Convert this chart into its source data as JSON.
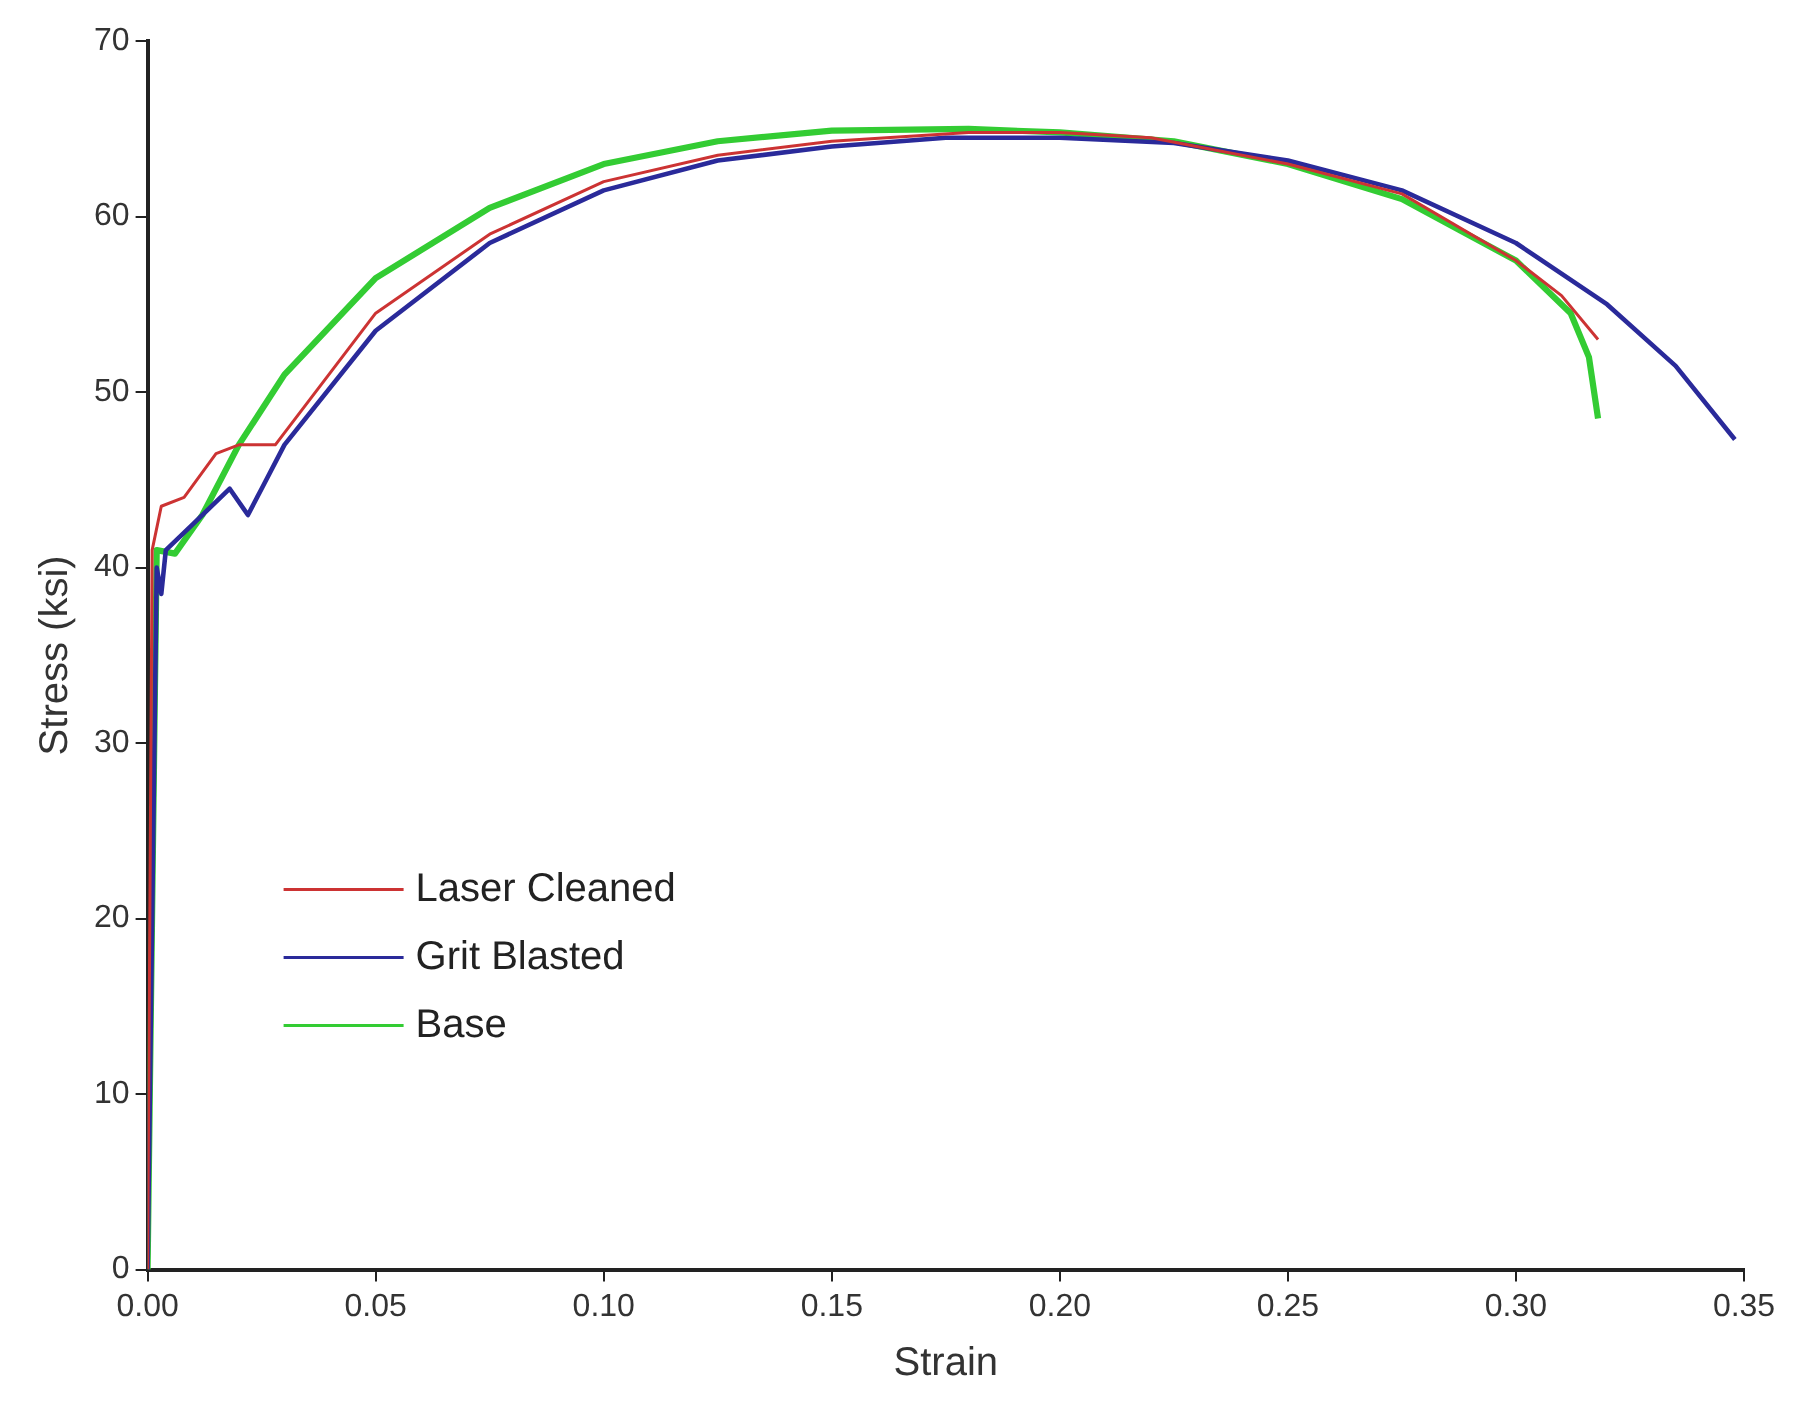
{
  "chart_data": {
    "type": "line",
    "xlabel": "Strain",
    "ylabel": "Stress (ksi)",
    "xlim": [
      0,
      0.35
    ],
    "ylim": [
      0,
      70
    ],
    "xticks": [
      {
        "value": 0,
        "label": "0.00"
      },
      {
        "value": 0.05,
        "label": "0.05"
      },
      {
        "value": 0.1,
        "label": "0.10"
      },
      {
        "value": 0.15,
        "label": "0.15"
      },
      {
        "value": 0.2,
        "label": "0.20"
      },
      {
        "value": 0.25,
        "label": "0.25"
      },
      {
        "value": 0.3,
        "label": "0.30"
      },
      {
        "value": 0.35,
        "label": "0.35"
      }
    ],
    "yticks": [
      0,
      10,
      20,
      30,
      40,
      50,
      60,
      70
    ],
    "grid": false,
    "legend": "bottom left",
    "marker": "none",
    "line_style": "solid",
    "series": [
      {
        "name": "Laser Cleaned",
        "color": "#cc3333",
        "x": [
          0,
          0.001,
          0.003,
          0.008,
          0.015,
          0.02,
          0.028,
          0.05,
          0.075,
          0.1,
          0.125,
          0.15,
          0.18,
          0.2,
          0.22,
          0.25,
          0.275,
          0.3,
          0.31,
          0.318
        ],
        "values": [
          0,
          41,
          43.5,
          44,
          46.5,
          47,
          47,
          54.5,
          59,
          62,
          63.5,
          64.3,
          64.8,
          64.8,
          64.5,
          63,
          61.3,
          57.5,
          55.5,
          53
        ]
      },
      {
        "name": "Grit Blasted",
        "color": "#2a2a9a",
        "x": [
          0,
          0.002,
          0.003,
          0.004,
          0.01,
          0.018,
          0.022,
          0.025,
          0.03,
          0.05,
          0.075,
          0.1,
          0.125,
          0.15,
          0.175,
          0.2,
          0.225,
          0.25,
          0.275,
          0.3,
          0.32,
          0.335,
          0.348
        ],
        "values": [
          0,
          40,
          38.5,
          41,
          42.5,
          44.5,
          43,
          44.5,
          47,
          53.5,
          58.5,
          61.5,
          63.2,
          64,
          64.5,
          64.5,
          64.2,
          63.2,
          61.5,
          58.5,
          55,
          51.5,
          47.3
        ]
      },
      {
        "name": "Base",
        "color": "#33cc33",
        "x": [
          0,
          0.002,
          0.006,
          0.012,
          0.02,
          0.03,
          0.05,
          0.075,
          0.1,
          0.125,
          0.15,
          0.18,
          0.2,
          0.225,
          0.25,
          0.275,
          0.3,
          0.312,
          0.316,
          0.318
        ],
        "values": [
          0,
          41,
          40.8,
          43,
          47,
          51,
          56.5,
          60.5,
          63,
          64.3,
          64.9,
          65,
          64.8,
          64.3,
          63,
          61,
          57.5,
          54.5,
          52,
          48.5
        ]
      }
    ]
  }
}
